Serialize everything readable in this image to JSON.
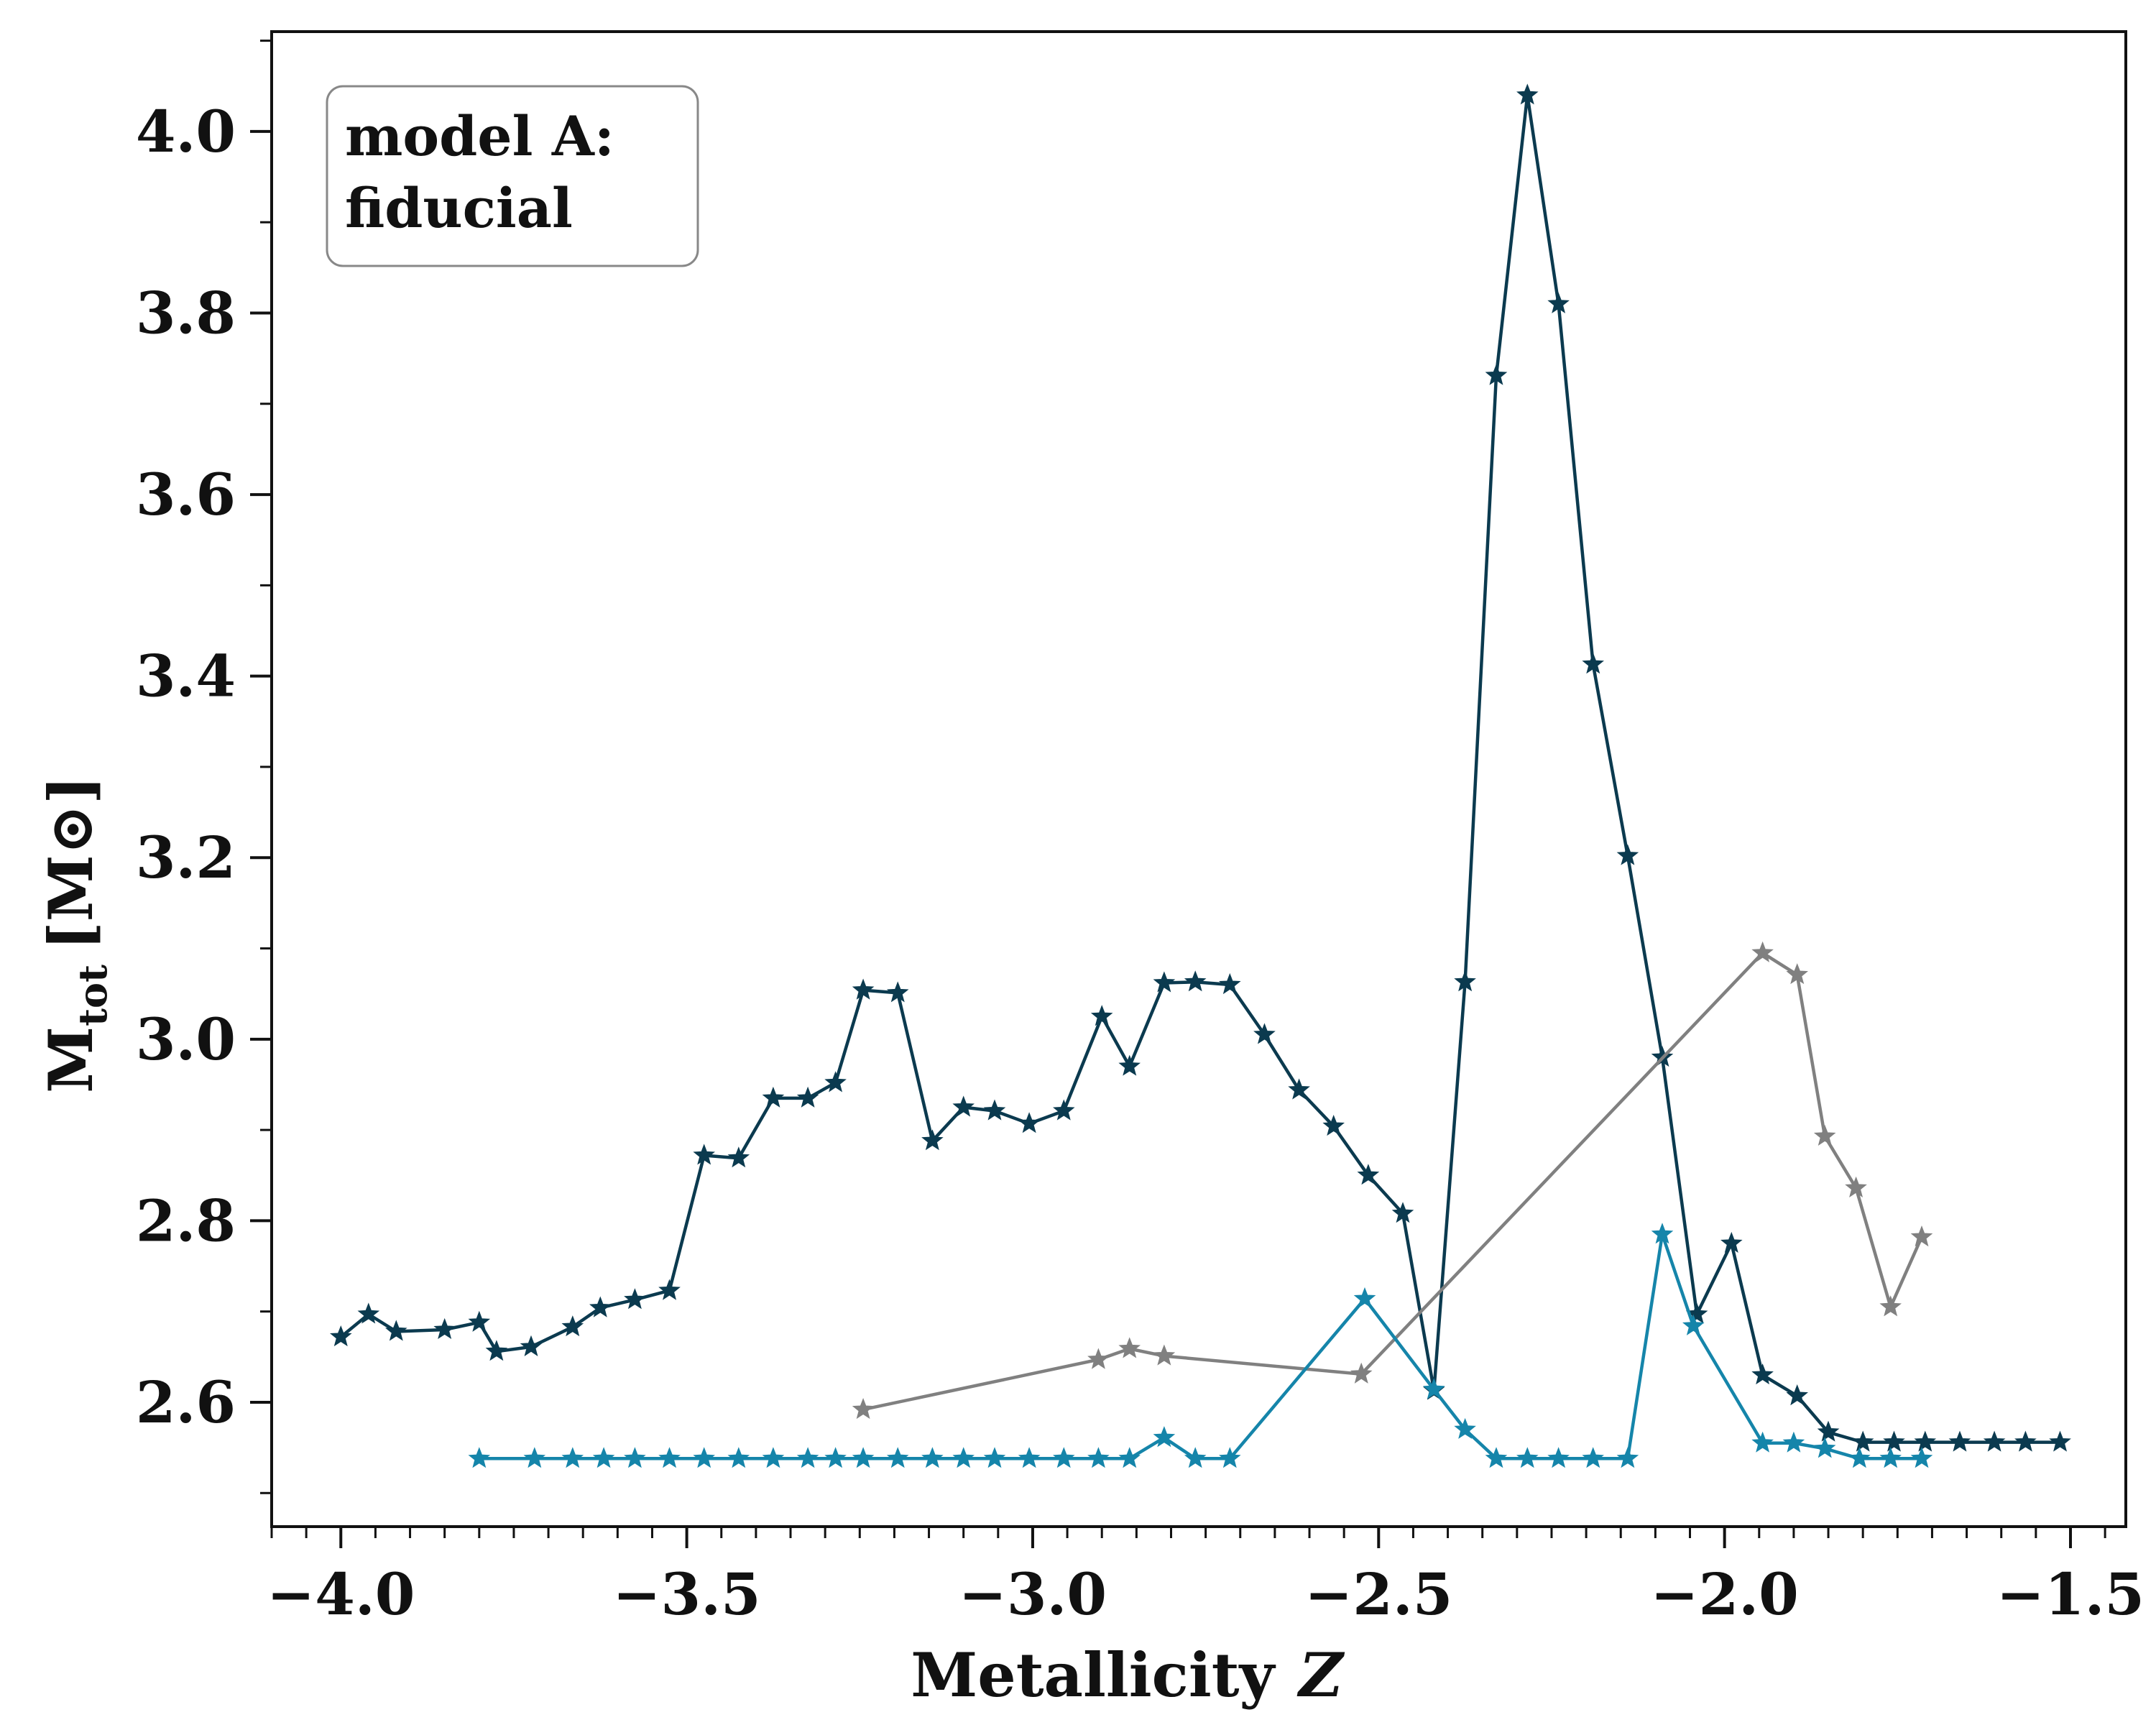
{
  "chart_data": {
    "type": "line",
    "xlabel": "Metallicity",
    "xlabel_var": "Z",
    "ylabel": "M",
    "ylabel_sub": "tot",
    "ylabel_unit": "[M⊙]",
    "annotation": [
      "model A:",
      "fiducial"
    ],
    "xlim": [
      -4.1,
      -1.42
    ],
    "ylim": [
      2.463,
      4.11
    ],
    "x_ticks": [
      -4.0,
      -3.5,
      -3.0,
      -2.5,
      -2.0,
      -1.5
    ],
    "x_tick_labels": [
      "−4.0",
      "−3.5",
      "−3.0",
      "−2.5",
      "−2.0",
      "−1.5"
    ],
    "y_ticks": [
      2.6,
      2.8,
      3.0,
      3.2,
      3.4,
      3.6,
      3.8,
      4.0
    ],
    "y_tick_labels": [
      "2.6",
      "2.8",
      "3.0",
      "3.2",
      "3.4",
      "3.6",
      "3.8",
      "4.0"
    ],
    "grid": false,
    "legend": "none",
    "series": [
      {
        "color": "#0b3a4f",
        "marker": "star",
        "x": [
          -4.0,
          -3.96,
          -3.92,
          -3.85,
          -3.8,
          -3.775,
          -3.725,
          -3.665,
          -3.625,
          -3.575,
          -3.525,
          -3.475,
          -3.425,
          -3.375,
          -3.325,
          -3.285,
          -3.245,
          -3.195,
          -3.145,
          -3.1,
          -3.055,
          -3.005,
          -2.955,
          -2.9,
          -2.86,
          -2.81,
          -2.765,
          -2.715,
          -2.665,
          -2.615,
          -2.565,
          -2.515,
          -2.465,
          -2.42,
          -2.375,
          -2.33,
          -2.285,
          -2.24,
          -2.19,
          -2.14,
          -2.09,
          -2.04,
          -1.99,
          -1.945,
          -1.895,
          -1.85,
          -1.8,
          -1.755,
          -1.71,
          -1.66,
          -1.61,
          -1.565,
          -1.515
        ],
        "y": [
          2.672,
          2.697,
          2.678,
          2.68,
          2.688,
          2.656,
          2.661,
          2.683,
          2.704,
          2.713,
          2.723,
          2.872,
          2.869,
          2.935,
          2.935,
          2.952,
          3.054,
          3.051,
          2.888,
          2.925,
          2.921,
          2.907,
          2.921,
          3.025,
          2.97,
          3.062,
          3.063,
          3.06,
          3.005,
          2.944,
          2.904,
          2.85,
          2.808,
          2.613,
          3.063,
          3.731,
          4.04,
          3.81,
          3.413,
          3.202,
          2.98,
          2.697,
          2.775,
          2.63,
          2.607,
          2.567,
          2.556,
          2.556,
          2.556,
          2.556,
          2.556,
          2.556,
          2.556
        ]
      },
      {
        "color": "#808080",
        "marker": "star",
        "x": [
          -3.245,
          -2.905,
          -2.86,
          -2.81,
          -2.525,
          -1.945,
          -1.895,
          -1.855,
          -1.81,
          -1.76,
          -1.715
        ],
        "y": [
          2.592,
          2.647,
          2.659,
          2.651,
          2.631,
          3.095,
          3.071,
          2.893,
          2.836,
          2.705,
          2.782
        ]
      },
      {
        "color": "#1585aa",
        "marker": "star",
        "x": [
          -3.8,
          -3.72,
          -3.665,
          -3.62,
          -3.575,
          -3.525,
          -3.475,
          -3.425,
          -3.375,
          -3.325,
          -3.285,
          -3.245,
          -3.195,
          -3.145,
          -3.1,
          -3.055,
          -3.005,
          -2.955,
          -2.905,
          -2.86,
          -2.81,
          -2.765,
          -2.715,
          -2.52,
          -2.42,
          -2.375,
          -2.33,
          -2.285,
          -2.24,
          -2.19,
          -2.14,
          -2.09,
          -2.045,
          -1.945,
          -1.9,
          -1.855,
          -1.805,
          -1.76,
          -1.715
        ],
        "y": [
          2.538,
          2.538,
          2.538,
          2.538,
          2.538,
          2.538,
          2.538,
          2.538,
          2.538,
          2.538,
          2.538,
          2.538,
          2.538,
          2.538,
          2.538,
          2.538,
          2.538,
          2.538,
          2.538,
          2.538,
          2.561,
          2.538,
          2.538,
          2.714,
          2.614,
          2.57,
          2.538,
          2.538,
          2.538,
          2.538,
          2.538,
          2.785,
          2.684,
          2.555,
          2.555,
          2.549,
          2.538,
          2.538,
          2.538
        ]
      }
    ]
  }
}
